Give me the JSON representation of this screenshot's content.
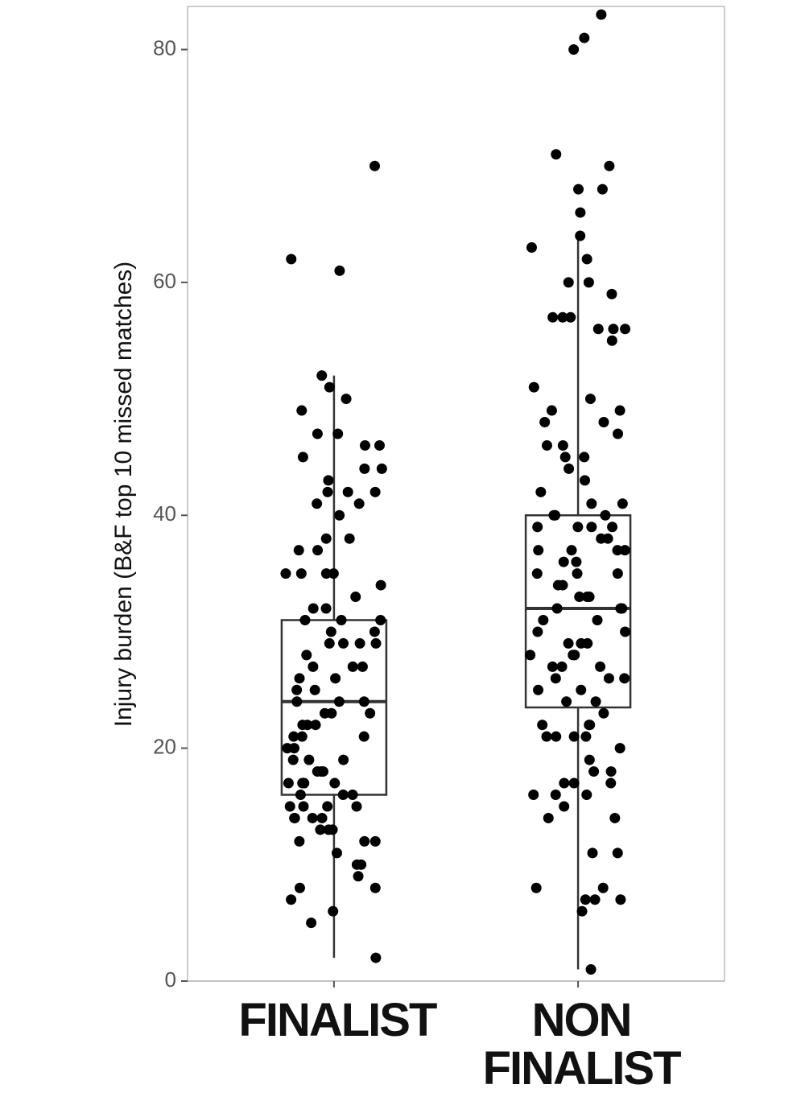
{
  "chart_data": {
    "type": "box",
    "y_label": "Injury burden (B&F top 10 missed matches)",
    "categories": [
      "FINALIST",
      "NON FINALIST"
    ],
    "ylim": [
      0,
      83.7
    ],
    "yticks": [
      0,
      20,
      40,
      60,
      80
    ],
    "box_color": "#333333",
    "point_color": "#000000",
    "boxes": [
      {
        "whislo": 2,
        "q1": 16,
        "med": 24,
        "q3": 31,
        "whishi": 52
      },
      {
        "whislo": 1,
        "q1": 23.5,
        "med": 32,
        "q3": 40,
        "whishi": 64
      }
    ],
    "points": [
      [
        70,
        62,
        61,
        52,
        51,
        50,
        49,
        47,
        47,
        46,
        46,
        45,
        44,
        44,
        43,
        42,
        42,
        42,
        41,
        41,
        40,
        38,
        38,
        37,
        37,
        35,
        35,
        35,
        35,
        34,
        33,
        32,
        32,
        31,
        31,
        31,
        30,
        30,
        29,
        29,
        29,
        29,
        28,
        27,
        27,
        27,
        26,
        26,
        25,
        25,
        24,
        24,
        24,
        23,
        23,
        23,
        22,
        22,
        22,
        21,
        21,
        21,
        20,
        20,
        19,
        19,
        19,
        18,
        18,
        18,
        17,
        17,
        17,
        17,
        16,
        16,
        16,
        15,
        15,
        15,
        15,
        14,
        14,
        14,
        14,
        13,
        13,
        13,
        12,
        12,
        12,
        11,
        10,
        10,
        9,
        8,
        8,
        7,
        6,
        5,
        2
      ],
      [
        83,
        81,
        80,
        71,
        70,
        68,
        68,
        66,
        64,
        63,
        62,
        60,
        60,
        59,
        57,
        57,
        57,
        56,
        56,
        56,
        55,
        51,
        50,
        49,
        49,
        48,
        48,
        47,
        46,
        46,
        45,
        45,
        44,
        43,
        42,
        41,
        41,
        40,
        40,
        40,
        39,
        39,
        39,
        39,
        38,
        38,
        37,
        37,
        37,
        37,
        36,
        36,
        35,
        35,
        35,
        34,
        34,
        33,
        33,
        33,
        32,
        32,
        32,
        31,
        31,
        30,
        30,
        29,
        29,
        29,
        28,
        28,
        28,
        27,
        27,
        27,
        26,
        26,
        26,
        25,
        25,
        24,
        24,
        23,
        22,
        22,
        22,
        21,
        21,
        21,
        21,
        20,
        19,
        18,
        18,
        17,
        17,
        17,
        16,
        16,
        16,
        15,
        14,
        14,
        11,
        11,
        8,
        8,
        7,
        7,
        7,
        6,
        1
      ]
    ]
  }
}
